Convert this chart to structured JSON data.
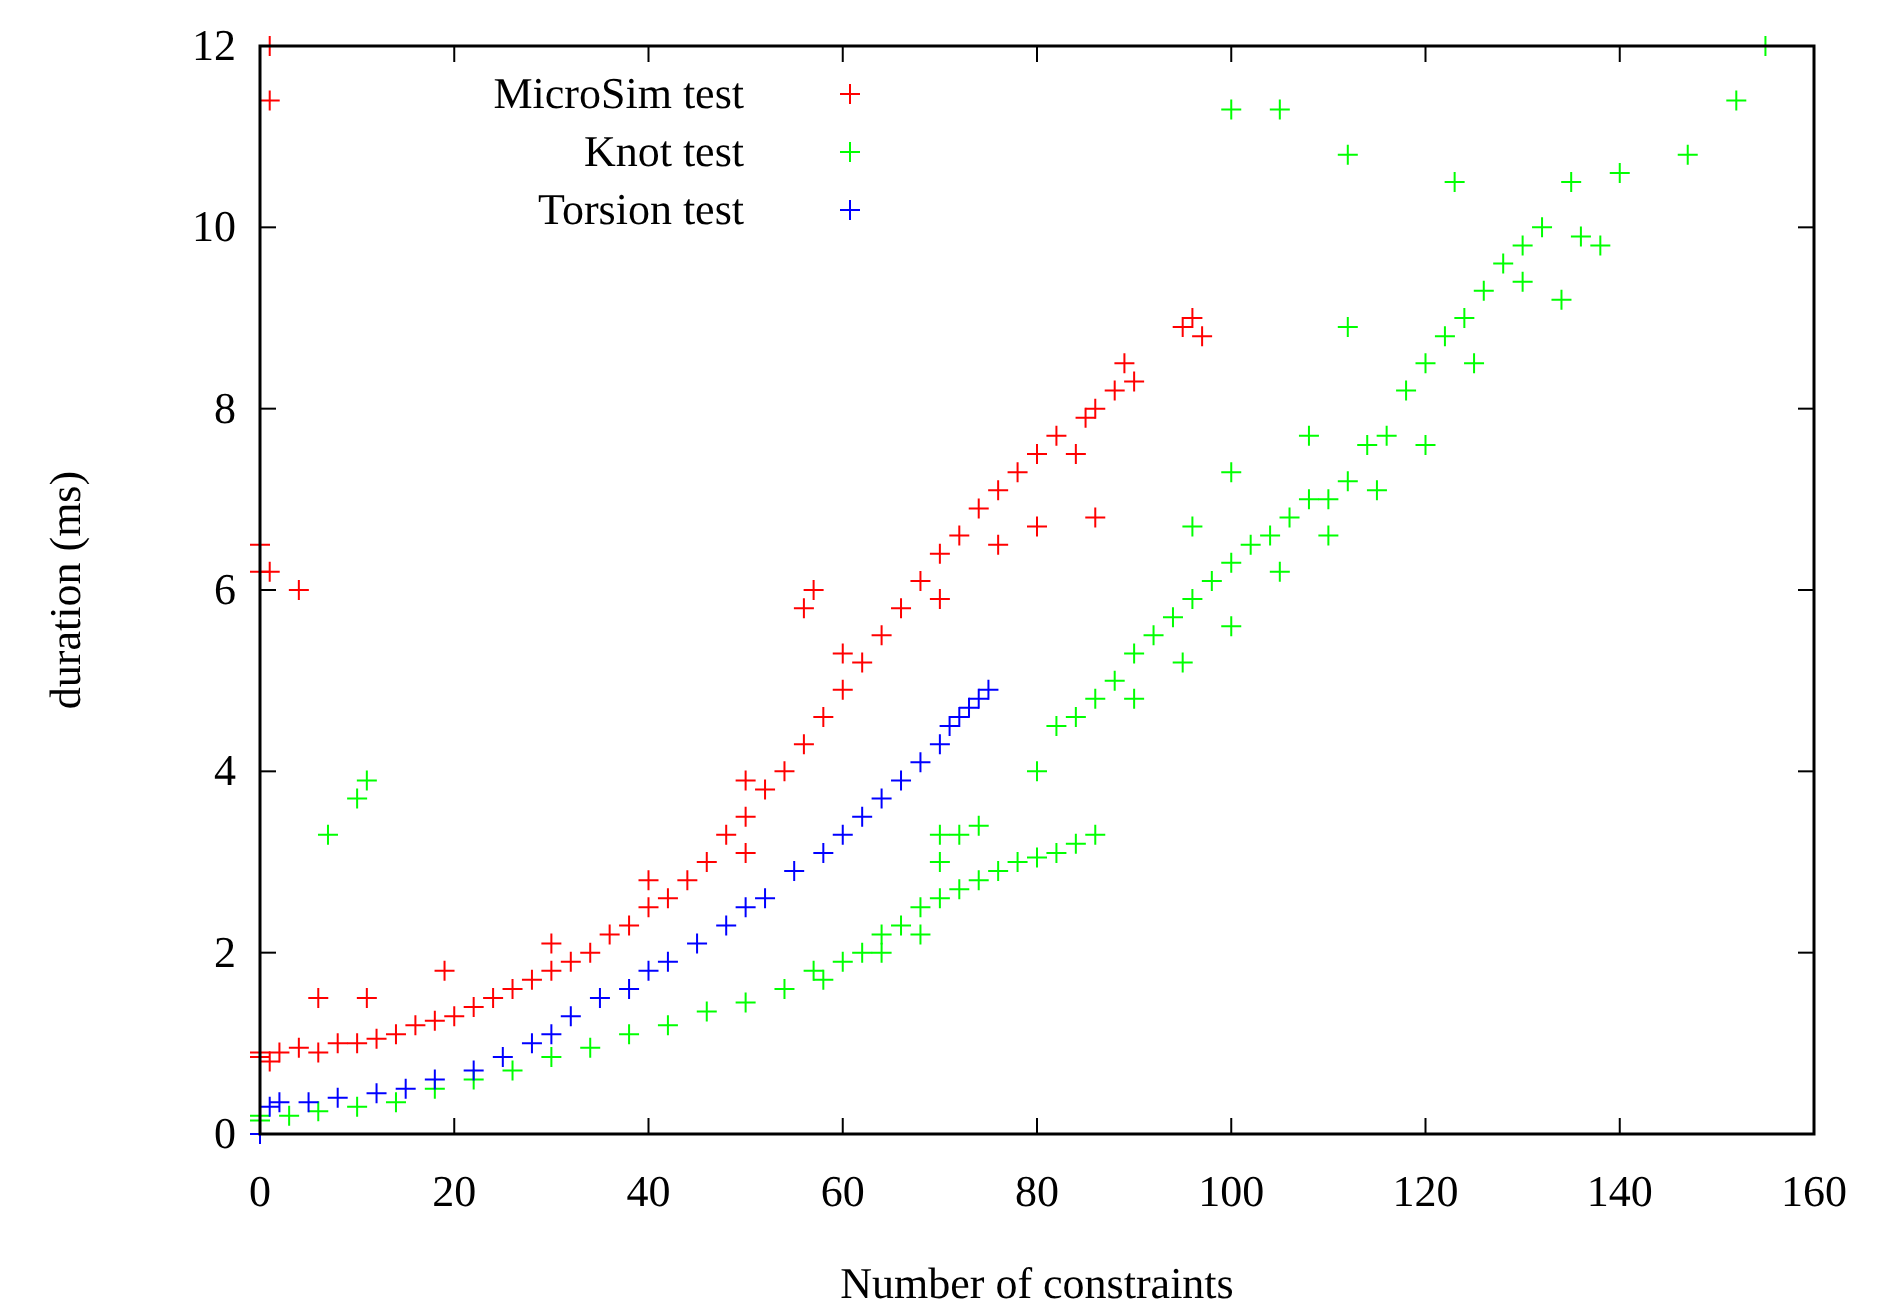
{
  "chart_data": {
    "type": "scatter",
    "xlabel": "Number of constraints",
    "ylabel": "duration (ms)",
    "xlim": [
      0,
      160
    ],
    "ylim": [
      0,
      12
    ],
    "xticks": [
      0,
      20,
      40,
      60,
      80,
      100,
      120,
      140,
      160
    ],
    "yticks": [
      0,
      2,
      4,
      6,
      8,
      10,
      12
    ],
    "marker": "cross",
    "legend": "top left",
    "grid": false,
    "series": [
      {
        "name": "MicroSim test",
        "color": "#ff0000",
        "x": [
          0,
          0,
          1,
          2,
          4,
          6,
          8,
          10,
          12,
          14,
          16,
          18,
          20,
          22,
          24,
          26,
          28,
          30,
          32,
          34,
          36,
          38,
          40,
          42,
          44,
          46,
          48,
          50,
          52,
          54,
          56,
          58,
          60,
          62,
          64,
          66,
          68,
          70,
          72,
          74,
          76,
          78,
          80,
          82,
          84,
          85,
          86,
          88,
          89,
          90,
          95,
          96,
          97,
          30,
          40,
          50,
          50,
          60,
          70,
          80,
          86,
          76,
          0,
          0,
          1,
          1,
          1,
          4,
          6,
          11,
          19,
          56,
          57
        ],
        "values": [
          0.85,
          0.9,
          0.8,
          0.9,
          0.95,
          0.9,
          1.0,
          1.0,
          1.05,
          1.1,
          1.2,
          1.25,
          1.3,
          1.4,
          1.5,
          1.6,
          1.7,
          1.8,
          1.9,
          2.0,
          2.2,
          2.3,
          2.5,
          2.6,
          2.8,
          3.0,
          3.3,
          3.5,
          3.8,
          4.0,
          4.3,
          4.6,
          4.9,
          5.2,
          5.5,
          5.8,
          6.1,
          6.4,
          6.6,
          6.9,
          7.1,
          7.3,
          7.5,
          7.7,
          7.5,
          7.9,
          8.0,
          8.2,
          8.5,
          8.3,
          8.9,
          9.0,
          8.8,
          2.1,
          2.8,
          3.9,
          3.1,
          5.3,
          5.9,
          6.7,
          6.8,
          6.5,
          6.2,
          6.5,
          6.2,
          12,
          11.4,
          6.0,
          1.5,
          1.5,
          1.8,
          5.8,
          6.0
        ]
      },
      {
        "name": "Knot test",
        "color": "#00ff00",
        "x": [
          0,
          0,
          3,
          6,
          10,
          14,
          18,
          22,
          26,
          30,
          34,
          38,
          42,
          46,
          50,
          54,
          57,
          58,
          60,
          62,
          64,
          66,
          68,
          70,
          72,
          74,
          76,
          78,
          80,
          82,
          84,
          86,
          70,
          72,
          74,
          68,
          64,
          80,
          82,
          84,
          86,
          88,
          90,
          92,
          94,
          96,
          98,
          100,
          102,
          104,
          106,
          108,
          110,
          112,
          114,
          116,
          118,
          120,
          122,
          124,
          126,
          128,
          130,
          132,
          135,
          140,
          147,
          152,
          155,
          90,
          95,
          100,
          105,
          110,
          96,
          100,
          108,
          115,
          120,
          125,
          130,
          136,
          138,
          134,
          7,
          10,
          11,
          100,
          105,
          112,
          123,
          112,
          70
        ],
        "values": [
          0.15,
          0.2,
          0.2,
          0.25,
          0.3,
          0.35,
          0.5,
          0.6,
          0.7,
          0.85,
          0.95,
          1.1,
          1.2,
          1.35,
          1.45,
          1.6,
          1.8,
          1.7,
          1.9,
          2.0,
          2.2,
          2.3,
          2.5,
          2.6,
          2.7,
          2.8,
          2.9,
          3.0,
          3.05,
          3.1,
          3.2,
          3.3,
          3.0,
          3.3,
          3.4,
          2.2,
          2.0,
          4.0,
          4.5,
          4.6,
          4.8,
          5.0,
          5.3,
          5.5,
          5.7,
          5.9,
          6.1,
          6.3,
          6.5,
          6.6,
          6.8,
          7.0,
          7.0,
          7.2,
          7.6,
          7.7,
          8.2,
          8.5,
          8.8,
          9.0,
          9.3,
          9.6,
          9.8,
          10.0,
          10.5,
          10.6,
          10.8,
          11.4,
          12.0,
          4.8,
          5.2,
          5.6,
          6.2,
          6.6,
          6.7,
          7.3,
          7.7,
          7.1,
          7.6,
          8.5,
          9.4,
          9.9,
          9.8,
          9.2,
          3.3,
          3.7,
          3.9,
          11.3,
          11.3,
          10.8,
          10.5,
          8.9,
          3.3
        ]
      },
      {
        "name": "Torsion test",
        "color": "#0000ff",
        "x": [
          1,
          0,
          2,
          5,
          8,
          12,
          15,
          18,
          22,
          25,
          28,
          30,
          32,
          35,
          38,
          40,
          42,
          45,
          48,
          50,
          52,
          55,
          58,
          60,
          62,
          64,
          66,
          68,
          70,
          71,
          72,
          73,
          74,
          75
        ],
        "values": [
          0.3,
          0,
          0.35,
          0.35,
          0.4,
          0.45,
          0.5,
          0.6,
          0.7,
          0.85,
          1.0,
          1.1,
          1.3,
          1.5,
          1.6,
          1.8,
          1.9,
          2.1,
          2.3,
          2.5,
          2.6,
          2.9,
          3.1,
          3.3,
          3.5,
          3.7,
          3.9,
          4.1,
          4.3,
          4.5,
          4.6,
          4.7,
          4.8,
          4.9
        ]
      }
    ]
  }
}
